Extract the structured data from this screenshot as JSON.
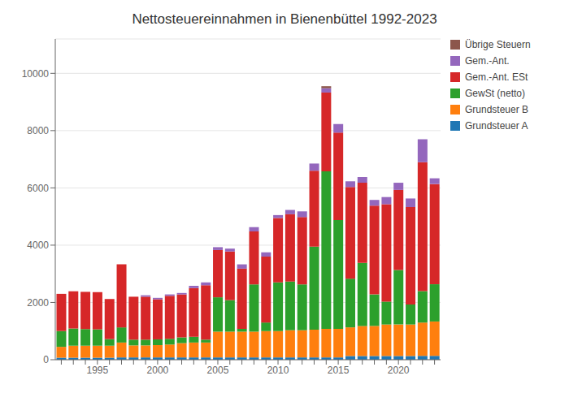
{
  "chart_data": {
    "type": "bar",
    "title": "Nettosteuereinnahmen in Bienenbüttel 1992-2023",
    "stacked": true,
    "grid": true,
    "legend": "right",
    "categories": [
      null,
      null,
      null,
      "1995",
      null,
      null,
      null,
      null,
      "2000",
      null,
      null,
      null,
      null,
      "2005",
      null,
      null,
      null,
      null,
      "2010",
      null,
      null,
      null,
      null,
      "2015",
      null,
      null,
      null,
      null,
      "2020",
      null,
      null,
      null
    ],
    "series": [
      {
        "name": "Grundsteuer A",
        "color": "#1f77b4",
        "values": [
          70,
          70,
          70,
          70,
          70,
          80,
          80,
          80,
          80,
          80,
          80,
          80,
          80,
          80,
          80,
          80,
          80,
          80,
          80,
          80,
          80,
          80,
          80,
          80,
          130,
          130,
          130,
          130,
          130,
          130,
          135,
          135
        ]
      },
      {
        "name": "Grundsteuer B",
        "color": "#ff7f0e",
        "values": [
          380,
          420,
          420,
          420,
          420,
          520,
          420,
          420,
          430,
          450,
          500,
          520,
          520,
          900,
          900,
          900,
          900,
          920,
          920,
          950,
          950,
          970,
          1000,
          1000,
          1000,
          1050,
          1050,
          1100,
          1100,
          1100,
          1160,
          1200
        ]
      },
      {
        "name": "GewSt (netto)",
        "color": "#2ca02c",
        "values": [
          550,
          600,
          580,
          570,
          230,
          530,
          200,
          200,
          200,
          200,
          200,
          200,
          100,
          1200,
          1100,
          100,
          1650,
          300,
          1700,
          1700,
          1600,
          2900,
          5500,
          3800,
          1700,
          2200,
          1100,
          800,
          1900,
          700,
          1100,
          1300
        ]
      },
      {
        "name": "Gem.-Ant. ESt",
        "color": "#d62728",
        "values": [
          1300,
          1300,
          1300,
          1300,
          1400,
          2200,
          1500,
          1500,
          1400,
          1500,
          1500,
          1700,
          1900,
          1650,
          1700,
          2100,
          1850,
          2300,
          2250,
          2350,
          2350,
          2650,
          2750,
          3050,
          3200,
          2800,
          3100,
          3400,
          2800,
          3400,
          4500,
          3500
        ]
      },
      {
        "name": "Gem.-Ant.",
        "color": "#9467bd",
        "values": [
          0,
          0,
          0,
          0,
          0,
          0,
          0,
          50,
          50,
          50,
          50,
          80,
          100,
          100,
          100,
          150,
          150,
          150,
          100,
          150,
          200,
          250,
          150,
          300,
          200,
          200,
          200,
          250,
          250,
          300,
          800,
          200
        ]
      },
      {
        "name": "Übrige Steuern",
        "color": "#8c564b",
        "values": [
          0,
          0,
          0,
          0,
          0,
          0,
          0,
          0,
          0,
          0,
          0,
          0,
          0,
          0,
          0,
          0,
          0,
          0,
          0,
          0,
          0,
          0,
          70,
          0,
          0,
          0,
          0,
          0,
          0,
          0,
          0,
          0
        ]
      }
    ],
    "ylim": [
      0,
      11200
    ],
    "yticks": [
      0,
      2000,
      4000,
      6000,
      8000,
      10000
    ]
  }
}
